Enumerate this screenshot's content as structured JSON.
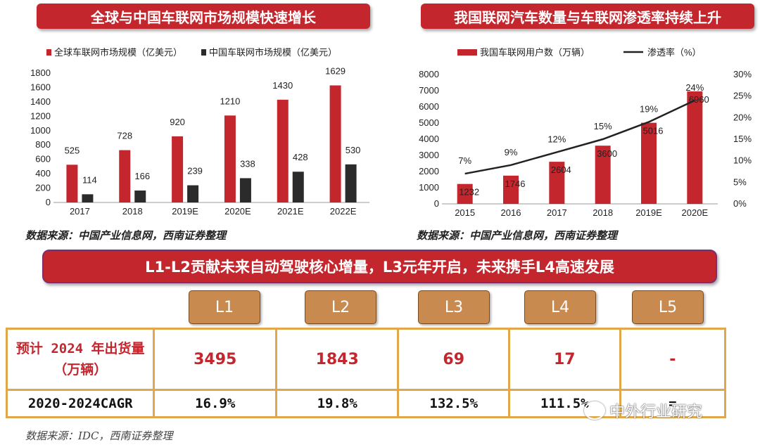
{
  "banners": {
    "left": "全球与中国车联网市场规模快速增长",
    "right": "我国联网汽车数量与车联网渗透率持续上升",
    "middle": "L1-L2贡献未来自动驾驶核心增量，L3元年开启，未来携手L4高速发展"
  },
  "sources": {
    "left": "数据来源：中国产业信息网，西南证券整理",
    "right": "数据来源：中国产业信息网，西南证券整理",
    "bottom": "数据来源：IDC，西南证券整理"
  },
  "colors": {
    "red": "#c4262e",
    "dark": "#2b2b2b",
    "gold": "#e0a84a",
    "level": "#c98a4f"
  },
  "chart_data": [
    {
      "type": "bar",
      "categories": [
        "2017",
        "2018",
        "2019E",
        "2020E",
        "2021E",
        "2022E"
      ],
      "series": [
        {
          "name": "全球车联网市场规模（亿美元）",
          "values": [
            525,
            728,
            920,
            1210,
            1430,
            1629
          ]
        },
        {
          "name": "中国车联网市场规模（亿美元）",
          "values": [
            114,
            166,
            239,
            338,
            428,
            530
          ]
        }
      ],
      "yticks": [
        "0",
        "200",
        "400",
        "600",
        "800",
        "1000",
        "1200",
        "1400",
        "1600",
        "1800"
      ],
      "ylim": [
        0,
        1800
      ],
      "legend_position": "top",
      "grid": false
    },
    {
      "type": "bar",
      "categories": [
        "2015",
        "2016",
        "2017",
        "2018",
        "2019E",
        "2020E"
      ],
      "series": [
        {
          "name": "我国车联网用户数（万辆）",
          "values": [
            1232,
            1746,
            2604,
            3600,
            5016,
            6960
          ]
        }
      ],
      "line_series": {
        "name": "渗透率（%）",
        "values": [
          7,
          9,
          12,
          15,
          19,
          24
        ],
        "labels": [
          "7%",
          "9%",
          "12%",
          "15%",
          "19%",
          "24%"
        ]
      },
      "yticks": [
        "0",
        "1000",
        "2000",
        "3000",
        "4000",
        "5000",
        "6000",
        "7000",
        "8000"
      ],
      "y2ticks": [
        "0%",
        "5%",
        "10%",
        "15%",
        "20%",
        "25%",
        "30%"
      ],
      "ylim": [
        0,
        8000
      ],
      "y2lim": [
        0,
        30
      ],
      "legend_position": "top",
      "grid": false
    }
  ],
  "levels": [
    "L1",
    "L2",
    "L3",
    "L4",
    "L5"
  ],
  "table": {
    "row1_label": "预计 2024 年出货量（万辆）",
    "row1_values": [
      "3495",
      "1843",
      "69",
      "17",
      "-"
    ],
    "row2_label": "2020-2024CAGR",
    "row2_values": [
      "16.9%",
      "19.8%",
      "132.5%",
      "111.5%",
      "="
    ]
  },
  "watermark": "中外行业研究"
}
